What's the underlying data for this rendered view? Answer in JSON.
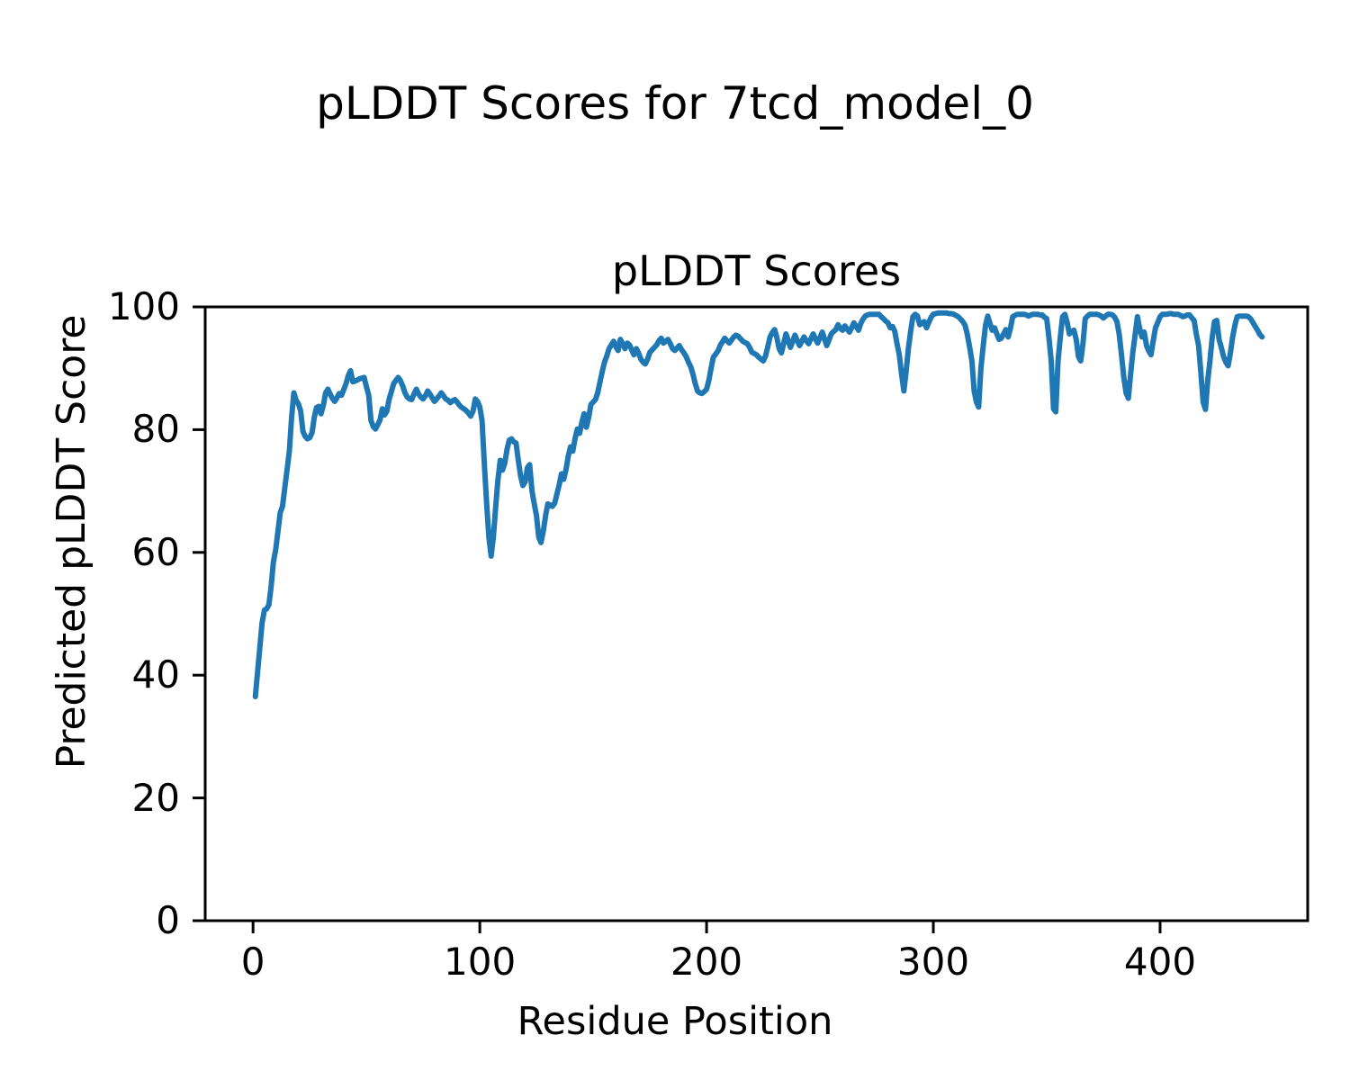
{
  "figure": {
    "suptitle": "pLDDT Scores for 7tcd_model_0",
    "background_color": "#ffffff",
    "text_color": "#000000"
  },
  "chart_data": {
    "type": "line",
    "title": "pLDDT Scores",
    "xlabel": "Residue Position",
    "ylabel": "Predicted pLDDT Score",
    "xlim": [
      -21.1,
      465.1
    ],
    "ylim": [
      0,
      100
    ],
    "xticks": [
      0,
      100,
      200,
      300,
      400
    ],
    "yticks": [
      0,
      20,
      40,
      60,
      80,
      100
    ],
    "grid": false,
    "legend_position": "none",
    "axes_color": "#000000",
    "series": [
      {
        "name": "pLDDT",
        "color": "#1f77b4",
        "line_width": 6,
        "x_start": 1,
        "x_step": 1,
        "values": [
          36.5,
          40.5,
          44.5,
          48.5,
          50.6,
          50.8,
          51.5,
          54.5,
          58.5,
          60.5,
          63.5,
          66.5,
          67.5,
          70.5,
          73.5,
          76.5,
          82.0,
          86.0,
          84.8,
          84.2,
          83.0,
          79.7,
          78.9,
          78.5,
          78.7,
          79.5,
          82.0,
          83.6,
          83.8,
          82.6,
          84.0,
          86.0,
          86.6,
          85.8,
          85.1,
          84.6,
          85.2,
          85.9,
          85.6,
          86.5,
          87.5,
          88.8,
          89.6,
          87.8,
          87.9,
          88.1,
          88.3,
          88.4,
          88.5,
          87.0,
          85.6,
          81.5,
          80.5,
          80.1,
          80.8,
          81.6,
          83.4,
          82.4,
          83.0,
          84.9,
          86.2,
          87.5,
          88.0,
          88.5,
          88.0,
          87.1,
          86.0,
          85.3,
          85.0,
          84.9,
          85.8,
          86.6,
          85.8,
          85.3,
          85.0,
          85.5,
          86.3,
          85.8,
          85.2,
          84.6,
          85.0,
          85.5,
          86.0,
          85.5,
          85.0,
          84.8,
          84.4,
          84.7,
          84.9,
          84.5,
          84.0,
          83.6,
          83.4,
          83.1,
          82.7,
          82.2,
          83.0,
          85.0,
          84.6,
          83.7,
          81.5,
          74.3,
          68.0,
          62.5,
          59.4,
          62.5,
          67.5,
          71.9,
          75.0,
          73.4,
          74.5,
          76.8,
          78.3,
          78.5,
          78.0,
          77.8,
          75.0,
          72.4,
          70.9,
          71.5,
          73.8,
          74.3,
          70.0,
          67.9,
          66.0,
          62.5,
          61.6,
          63.5,
          66.0,
          67.9,
          67.7,
          67.5,
          68.0,
          69.5,
          71.0,
          72.8,
          71.9,
          73.5,
          75.7,
          77.2,
          76.5,
          78.5,
          80.1,
          79.4,
          81.2,
          82.6,
          80.4,
          82.0,
          84.1,
          84.5,
          84.9,
          86.0,
          87.8,
          89.5,
          91.0,
          92.0,
          93.2,
          93.8,
          94.4,
          93.5,
          92.9,
          94.7,
          94.0,
          93.2,
          94.1,
          93.8,
          93.0,
          92.2,
          93.2,
          92.5,
          91.5,
          91.0,
          90.7,
          91.5,
          92.6,
          93.0,
          93.4,
          93.8,
          94.5,
          94.9,
          94.1,
          94.4,
          94.7,
          94.0,
          93.2,
          92.9,
          93.3,
          93.7,
          93.0,
          92.5,
          91.9,
          91.0,
          90.3,
          89.0,
          87.5,
          86.3,
          86.0,
          85.9,
          86.2,
          86.6,
          88.0,
          90.0,
          91.8,
          92.3,
          92.8,
          93.7,
          94.3,
          94.9,
          94.5,
          94.1,
          94.6,
          95.1,
          95.4,
          95.2,
          94.8,
          94.4,
          94.2,
          94.0,
          93.4,
          92.6,
          92.4,
          92.2,
          91.8,
          91.5,
          91.2,
          92.0,
          93.5,
          95.1,
          95.8,
          96.3,
          95.0,
          93.2,
          92.5,
          94.0,
          95.6,
          94.5,
          93.4,
          94.4,
          95.4,
          94.5,
          93.7,
          94.4,
          95.1,
          94.5,
          94.0,
          94.8,
          95.6,
          94.8,
          94.1,
          95.0,
          95.9,
          94.8,
          93.7,
          94.6,
          95.6,
          96.0,
          96.3,
          97.1,
          96.5,
          96.2,
          96.9,
          96.4,
          95.9,
          96.6,
          97.4,
          96.8,
          96.2,
          97.3,
          98.0,
          98.5,
          98.7,
          98.8,
          98.8,
          98.8,
          98.8,
          98.8,
          98.4,
          98.1,
          97.7,
          97.4,
          96.6,
          96.8,
          96.0,
          94.0,
          92.2,
          89.0,
          86.3,
          89.5,
          93.2,
          96.0,
          98.4,
          98.8,
          98.5,
          97.1,
          97.3,
          97.6,
          96.6,
          97.5,
          98.3,
          98.8,
          98.9,
          99.0,
          99.0,
          99.0,
          99.0,
          99.0,
          98.9,
          98.9,
          98.8,
          98.6,
          98.4,
          98.0,
          97.6,
          97.0,
          95.5,
          93.5,
          91.2,
          86.3,
          84.5,
          83.7,
          90.0,
          93.7,
          97.0,
          98.5,
          97.3,
          96.2,
          96.6,
          95.6,
          94.7,
          94.9,
          95.6,
          96.3,
          95.1,
          96.5,
          98.4,
          98.6,
          98.8,
          98.8,
          98.8,
          98.8,
          98.7,
          98.5,
          98.7,
          98.8,
          98.8,
          98.8,
          98.7,
          98.7,
          98.3,
          98.1,
          95.0,
          91.2,
          83.4,
          82.9,
          91.2,
          95.0,
          98.4,
          98.8,
          97.5,
          95.6,
          96.0,
          96.2,
          94.7,
          91.9,
          91.2,
          94.0,
          98.1,
          98.5,
          98.8,
          98.8,
          98.8,
          98.8,
          98.7,
          98.5,
          98.2,
          98.5,
          98.8,
          98.8,
          98.7,
          98.3,
          97.6,
          95.5,
          92.2,
          88.5,
          86.0,
          85.1,
          89.0,
          92.6,
          95.5,
          98.4,
          96.5,
          95.1,
          95.9,
          93.7,
          92.8,
          92.2,
          94.5,
          96.6,
          97.5,
          98.4,
          98.8,
          98.8,
          98.8,
          98.9,
          98.9,
          98.8,
          98.8,
          98.8,
          98.6,
          98.4,
          98.5,
          98.7,
          98.7,
          98.2,
          97.8,
          95.5,
          93.7,
          89.3,
          84.5,
          83.3,
          88.0,
          91.2,
          95.0,
          97.6,
          97.8,
          94.7,
          93.4,
          91.9,
          91.0,
          90.4,
          92.5,
          95.1,
          97.0,
          98.4,
          98.5,
          98.5,
          98.5,
          98.5,
          98.4,
          98.0,
          97.4,
          96.8,
          96.2,
          95.5,
          95.1
        ]
      }
    ]
  }
}
